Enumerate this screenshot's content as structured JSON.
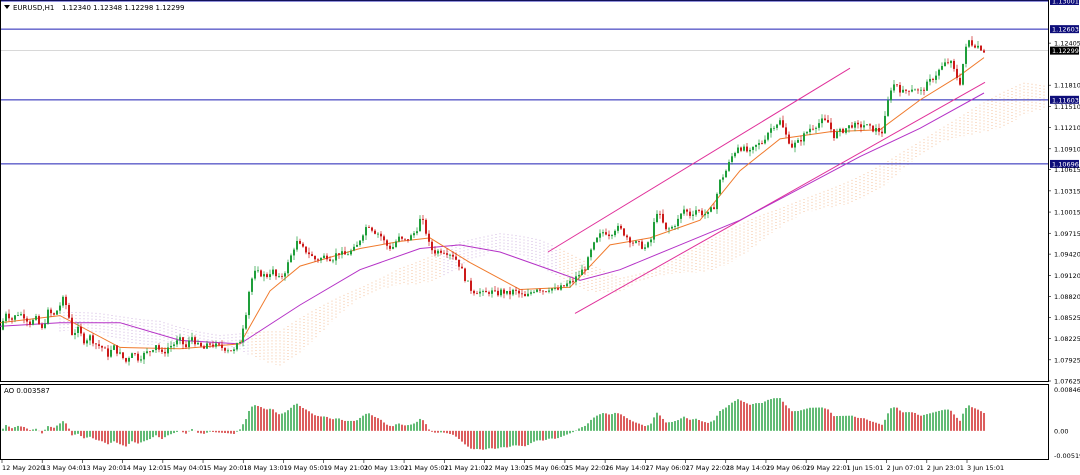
{
  "header": {
    "symbol_label": "EURUSD,H1",
    "ohlc_values": "1.12340 1.12348 1.12298 1.12299",
    "dropdown_icon": "triangle-down-icon"
  },
  "indicator": {
    "label": "AO 0.003587"
  },
  "colors": {
    "bull": "#1e9e3a",
    "bear": "#cc1a1a",
    "level_line": "#1f1fb5",
    "ma_fast": "#f07a2c",
    "ma_slow": "#b532c7",
    "channel": "#e0309a",
    "cloud": "#f3b486",
    "cloud_purple": "#c7a5d9",
    "price_label_bg": "#0e0e7a",
    "current_label_bg": "#000000"
  },
  "chart_data": {
    "type": "candlestick",
    "symbol": "EURUSD",
    "timeframe": "H1",
    "ylim": [
      1.07625,
      1.13001
    ],
    "y_ticks": [
      "1.13001",
      "1.12603",
      "1.12405",
      "1.12299",
      "1.11810",
      "1.11603",
      "1.11510",
      "1.11210",
      "1.10910",
      "1.10696",
      "1.10615",
      "1.10315",
      "1.10015",
      "1.09715",
      "1.09420",
      "1.09120",
      "1.08820",
      "1.08525",
      "1.08225",
      "1.07925",
      "1.07625"
    ],
    "x_ticks": [
      "12 May 2020",
      "13 May 04:01",
      "13 May 20:01",
      "14 May 12:01",
      "15 May 04:01",
      "15 May 20:01",
      "18 May 13:01",
      "19 May 05:01",
      "19 May 21:01",
      "20 May 13:01",
      "21 May 05:01",
      "21 May 21:01",
      "22 May 13:01",
      "25 May 06:01",
      "25 May 22:01",
      "26 May 14:01",
      "27 May 06:01",
      "27 May 22:01",
      "28 May 14:01",
      "29 May 06:01",
      "29 May 22:01",
      "1 Jun 15:01",
      "2 Jun 07:01",
      "2 Jun 23:01",
      "3 Jun 15:01"
    ],
    "levels": [
      {
        "value": 1.13001,
        "label": "1.13001"
      },
      {
        "value": 1.12603,
        "label": "1.12603"
      },
      {
        "value": 1.11603,
        "label": "1.11603"
      },
      {
        "value": 1.10696,
        "label": "1.10696"
      }
    ],
    "current_price": {
      "value": 1.12299,
      "label": "1.12299"
    },
    "close_path": [
      [
        0,
        1.0835
      ],
      [
        6,
        1.086
      ],
      [
        12,
        1.085
      ],
      [
        18,
        1.0858
      ],
      [
        24,
        1.0855
      ],
      [
        30,
        1.0845
      ],
      [
        36,
        1.085
      ],
      [
        42,
        1.0835
      ],
      [
        48,
        1.086
      ],
      [
        54,
        1.0855
      ],
      [
        60,
        1.087
      ],
      [
        64,
        1.088
      ],
      [
        68,
        1.086
      ],
      [
        72,
        1.083
      ],
      [
        78,
        1.0835
      ],
      [
        84,
        1.082
      ],
      [
        90,
        1.0825
      ],
      [
        96,
        1.0815
      ],
      [
        102,
        1.081
      ],
      [
        108,
        1.08
      ],
      [
        114,
        1.081
      ],
      [
        120,
        1.08
      ],
      [
        126,
        1.079
      ],
      [
        132,
        1.0805
      ],
      [
        138,
        1.0795
      ],
      [
        144,
        1.08
      ],
      [
        150,
        1.0805
      ],
      [
        156,
        1.0815
      ],
      [
        162,
        1.08
      ],
      [
        168,
        1.081
      ],
      [
        174,
        1.0815
      ],
      [
        180,
        1.082
      ],
      [
        186,
        1.081
      ],
      [
        192,
        1.0825
      ],
      [
        198,
        1.0812
      ],
      [
        204,
        1.0808
      ],
      [
        210,
        1.0815
      ],
      [
        216,
        1.0812
      ],
      [
        222,
        1.081
      ],
      [
        228,
        1.0808
      ],
      [
        234,
        1.0805
      ],
      [
        240,
        1.082
      ],
      [
        246,
        1.086
      ],
      [
        250,
        1.09
      ],
      [
        254,
        1.0915
      ],
      [
        260,
        1.0915
      ],
      [
        266,
        1.091
      ],
      [
        272,
        1.092
      ],
      [
        278,
        1.0905
      ],
      [
        284,
        1.0915
      ],
      [
        290,
        1.0935
      ],
      [
        296,
        1.096
      ],
      [
        302,
        1.095
      ],
      [
        308,
        1.0945
      ],
      [
        314,
        1.0935
      ],
      [
        320,
        1.0935
      ],
      [
        326,
        1.094
      ],
      [
        332,
        1.0935
      ],
      [
        338,
        1.0945
      ],
      [
        344,
        1.094
      ],
      [
        350,
        1.0945
      ],
      [
        356,
        1.095
      ],
      [
        362,
        1.097
      ],
      [
        368,
        1.0985
      ],
      [
        374,
        1.0975
      ],
      [
        380,
        1.097
      ],
      [
        386,
        1.0955
      ],
      [
        392,
        1.095
      ],
      [
        398,
        1.0965
      ],
      [
        404,
        1.096
      ],
      [
        410,
        1.0965
      ],
      [
        416,
        1.0975
      ],
      [
        420,
        1.099
      ],
      [
        424,
        1.0985
      ],
      [
        430,
        1.095
      ],
      [
        436,
        1.0945
      ],
      [
        442,
        1.0948
      ],
      [
        448,
        1.0945
      ],
      [
        454,
        1.094
      ],
      [
        460,
        1.0925
      ],
      [
        466,
        1.0905
      ],
      [
        472,
        1.089
      ],
      [
        478,
        1.089
      ],
      [
        484,
        1.0885
      ],
      [
        490,
        1.089
      ],
      [
        496,
        1.0885
      ],
      [
        502,
        1.089
      ],
      [
        508,
        1.0885
      ],
      [
        514,
        1.089
      ],
      [
        520,
        1.0885
      ],
      [
        526,
        1.088
      ],
      [
        532,
        1.089
      ],
      [
        538,
        1.0895
      ],
      [
        544,
        1.089
      ],
      [
        550,
        1.0895
      ],
      [
        556,
        1.089
      ],
      [
        562,
        1.0895
      ],
      [
        568,
        1.09
      ],
      [
        574,
        1.0905
      ],
      [
        580,
        1.0915
      ],
      [
        586,
        1.0925
      ],
      [
        592,
        1.095
      ],
      [
        598,
        1.0965
      ],
      [
        604,
        1.0975
      ],
      [
        610,
        1.097
      ],
      [
        616,
        1.098
      ],
      [
        622,
        1.0975
      ],
      [
        628,
        1.0965
      ],
      [
        634,
        1.0958
      ],
      [
        640,
        1.0955
      ],
      [
        646,
        1.095
      ],
      [
        652,
        1.0965
      ],
      [
        656,
        1.1005
      ],
      [
        660,
        1.0995
      ],
      [
        666,
        1.0975
      ],
      [
        672,
        1.098
      ],
      [
        678,
        1.099
      ],
      [
        684,
        1.1005
      ],
      [
        690,
        1.0998
      ],
      [
        696,
        1.1005
      ],
      [
        702,
        1.1
      ],
      [
        708,
        1.0998
      ],
      [
        714,
        1.101
      ],
      [
        720,
        1.1045
      ],
      [
        726,
        1.106
      ],
      [
        732,
        1.108
      ],
      [
        738,
        1.1095
      ],
      [
        744,
        1.109
      ],
      [
        750,
        1.1085
      ],
      [
        756,
        1.1095
      ],
      [
        762,
        1.11
      ],
      [
        768,
        1.1115
      ],
      [
        774,
        1.1125
      ],
      [
        780,
        1.113
      ],
      [
        786,
        1.111
      ],
      [
        792,
        1.1095
      ],
      [
        798,
        1.11
      ],
      [
        804,
        1.111
      ],
      [
        810,
        1.112
      ],
      [
        816,
        1.1125
      ],
      [
        822,
        1.113
      ],
      [
        828,
        1.1128
      ],
      [
        834,
        1.111
      ],
      [
        840,
        1.1115
      ],
      [
        846,
        1.112
      ],
      [
        852,
        1.1125
      ],
      [
        858,
        1.1122
      ],
      [
        864,
        1.1125
      ],
      [
        870,
        1.112
      ],
      [
        876,
        1.1118
      ],
      [
        882,
        1.1115
      ],
      [
        886,
        1.114
      ],
      [
        890,
        1.1175
      ],
      [
        896,
        1.1185
      ],
      [
        902,
        1.117
      ],
      [
        908,
        1.1175
      ],
      [
        914,
        1.1178
      ],
      [
        920,
        1.117
      ],
      [
        926,
        1.118
      ],
      [
        932,
        1.119
      ],
      [
        938,
        1.12
      ],
      [
        944,
        1.121
      ],
      [
        950,
        1.1215
      ],
      [
        956,
        1.1195
      ],
      [
        960,
        1.1185
      ],
      [
        964,
        1.122
      ],
      [
        968,
        1.1245
      ],
      [
        972,
        1.124
      ],
      [
        976,
        1.1238
      ],
      [
        980,
        1.1235
      ],
      [
        984,
        1.123
      ]
    ],
    "ma_fast_path": [
      [
        0,
        1.0845
      ],
      [
        60,
        1.0855
      ],
      [
        120,
        1.081
      ],
      [
        180,
        1.0808
      ],
      [
        240,
        1.0815
      ],
      [
        270,
        1.089
      ],
      [
        300,
        1.0925
      ],
      [
        360,
        1.095
      ],
      [
        400,
        1.096
      ],
      [
        430,
        1.0965
      ],
      [
        470,
        1.093
      ],
      [
        520,
        1.0892
      ],
      [
        570,
        1.0895
      ],
      [
        610,
        1.0955
      ],
      [
        650,
        1.0965
      ],
      [
        700,
        1.099
      ],
      [
        740,
        1.106
      ],
      [
        780,
        1.1105
      ],
      [
        830,
        1.1115
      ],
      [
        880,
        1.1118
      ],
      [
        920,
        1.116
      ],
      [
        960,
        1.1195
      ],
      [
        984,
        1.122
      ]
    ],
    "ma_slow_path": [
      [
        0,
        1.084
      ],
      [
        60,
        1.0845
      ],
      [
        120,
        1.0845
      ],
      [
        180,
        1.082
      ],
      [
        240,
        1.0815
      ],
      [
        300,
        1.087
      ],
      [
        360,
        1.092
      ],
      [
        420,
        1.095
      ],
      [
        460,
        1.0955
      ],
      [
        500,
        1.0945
      ],
      [
        540,
        1.0925
      ],
      [
        580,
        1.0905
      ],
      [
        620,
        1.092
      ],
      [
        680,
        1.0955
      ],
      [
        740,
        1.099
      ],
      [
        800,
        1.1035
      ],
      [
        860,
        1.108
      ],
      [
        920,
        1.112
      ],
      [
        984,
        1.117
      ]
    ],
    "channel_upper": [
      [
        548,
        1.0945
      ],
      [
        850,
        1.1205
      ]
    ],
    "channel_lower": [
      [
        575,
        1.0858
      ],
      [
        985,
        1.1185
      ]
    ],
    "ao_values_note": "Awesome Oscillator histogram, range approx -0.005198 to 0.008465",
    "ao_ylim": [
      -0.005198,
      0.008465
    ],
    "ao_ticks": [
      "0.008465",
      "0.00",
      "-0.005198"
    ]
  }
}
